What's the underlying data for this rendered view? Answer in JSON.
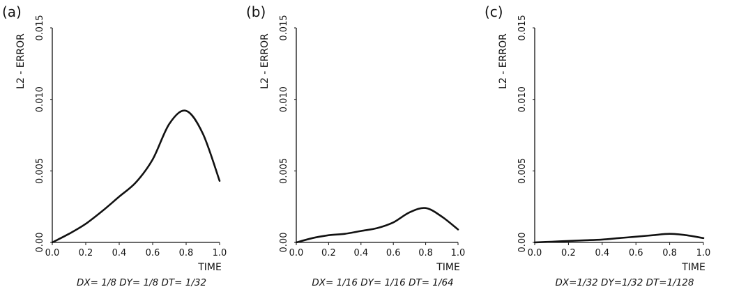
{
  "chart_data": [
    {
      "type": "line",
      "panel_label": "(a)",
      "ylabel": "L2 - ERROR",
      "xlabel": "TIME",
      "xlim": [
        0,
        1.0
      ],
      "ylim": [
        0,
        0.015
      ],
      "xticks": [
        "0.0",
        "0.2",
        "0.4",
        "0.6",
        "0.8",
        "1.0"
      ],
      "yticks": [
        "0.00",
        "0.005",
        "0.010",
        "0.015"
      ],
      "caption": "DX= 1/8   DY= 1/8   DT= 1/32",
      "x": [
        0.0,
        0.1,
        0.2,
        0.3,
        0.4,
        0.5,
        0.6,
        0.7,
        0.8,
        0.9,
        1.0
      ],
      "values": [
        0.0,
        0.0006,
        0.0013,
        0.0022,
        0.0032,
        0.0042,
        0.0058,
        0.0083,
        0.0092,
        0.0076,
        0.0043
      ]
    },
    {
      "type": "line",
      "panel_label": "(b)",
      "ylabel": "L2 - ERROR",
      "xlabel": "TIME",
      "xlim": [
        0,
        1.0
      ],
      "ylim": [
        0,
        0.015
      ],
      "xticks": [
        "0.0",
        "0.2",
        "0.4",
        "0.6",
        "0.8",
        "1.0"
      ],
      "yticks": [
        "0.00",
        "0.005",
        "0.010",
        "0.015"
      ],
      "caption": "DX= 1/16   DY= 1/16   DT= 1/64",
      "x": [
        0.0,
        0.1,
        0.2,
        0.3,
        0.4,
        0.5,
        0.6,
        0.7,
        0.8,
        0.9,
        1.0
      ],
      "values": [
        0.0,
        0.0003,
        0.0005,
        0.0006,
        0.0008,
        0.001,
        0.0014,
        0.0021,
        0.0024,
        0.0018,
        0.0009
      ]
    },
    {
      "type": "line",
      "panel_label": "(c)",
      "ylabel": "L2 - ERROR",
      "xlabel": "TIME",
      "xlim": [
        0,
        1.0
      ],
      "ylim": [
        0,
        0.015
      ],
      "xticks": [
        "0.0",
        "0.2",
        "0.4",
        "0.6",
        "0.8",
        "1.0"
      ],
      "yticks": [
        "0.00",
        "0.005",
        "0.010",
        "0.015"
      ],
      "caption": "DX=1/32   DY=1/32   DT=1/128",
      "x": [
        0.0,
        0.1,
        0.2,
        0.3,
        0.4,
        0.5,
        0.6,
        0.7,
        0.8,
        0.9,
        1.0
      ],
      "values": [
        0.0,
        5e-05,
        0.0001,
        0.00015,
        0.0002,
        0.0003,
        0.0004,
        0.0005,
        0.0006,
        0.0005,
        0.0003
      ]
    }
  ]
}
